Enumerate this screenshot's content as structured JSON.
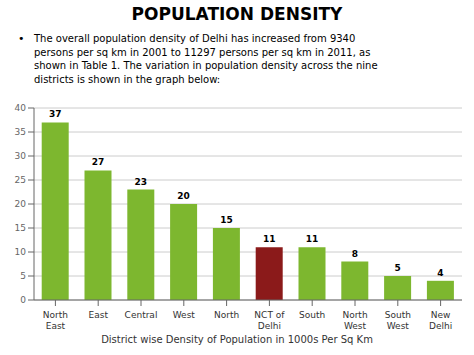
{
  "chart_data": {
    "type": "bar",
    "title": "POPULATION DENSITY",
    "subtitle": "The overall population density of Delhi has increased from 9340\npersons per sq km in 2001 to 11297 persons per sq km in 2011, as\nshown in Table 1. The variation in population density across the nine\ndistricts is shown in the graph below:",
    "annotations": [
      "•"
    ],
    "categories": [
      "North\nEast",
      "East",
      "Central",
      "West",
      "North",
      "NCT of\nDelhi",
      "South",
      "North\nWest",
      "South\nWest",
      "New\nDelhi"
    ],
    "values": [
      37,
      27,
      23,
      20,
      15,
      11,
      11,
      8,
      5,
      4
    ],
    "colors": [
      "#7db72f",
      "#7db72f",
      "#7db72f",
      "#7db72f",
      "#7db72f",
      "#8b1a1a",
      "#7db72f",
      "#7db72f",
      "#7db72f",
      "#7db72f"
    ],
    "xlabel": "District wise Density of Population in 1000s Per Sq Km",
    "ylim": [
      0,
      40
    ],
    "yticks": [
      0,
      5,
      10,
      15,
      20,
      25,
      30,
      35,
      40
    ],
    "grid": true,
    "data_labels": true
  }
}
